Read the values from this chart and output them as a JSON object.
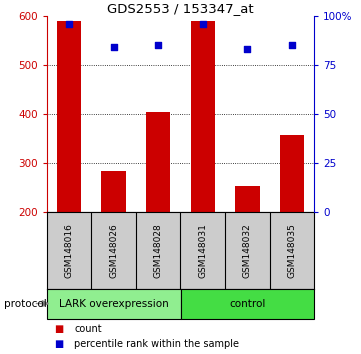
{
  "title": "GDS2553 / 153347_at",
  "samples": [
    "GSM148016",
    "GSM148026",
    "GSM148028",
    "GSM148031",
    "GSM148032",
    "GSM148035"
  ],
  "counts": [
    590,
    285,
    405,
    590,
    253,
    358
  ],
  "percentile_ranks": [
    96,
    84,
    85,
    96,
    83,
    85
  ],
  "ylim_left": [
    200,
    600
  ],
  "ylim_right": [
    0,
    100
  ],
  "yticks_left": [
    200,
    300,
    400,
    500,
    600
  ],
  "yticks_right": [
    0,
    25,
    50,
    75,
    100
  ],
  "ytick_labels_right": [
    "0",
    "25",
    "50",
    "75",
    "100%"
  ],
  "bar_color": "#cc0000",
  "dot_color": "#0000cc",
  "group1_label": "LARK overexpression",
  "group2_label": "control",
  "group1_color": "#90ee90",
  "group2_color": "#44dd44",
  "protocol_label": "protocol",
  "legend_count_label": "count",
  "legend_percentile_label": "percentile rank within the sample",
  "bar_color_legend": "#cc0000",
  "dot_color_legend": "#0000cc",
  "right_axis_color": "#0000cc",
  "background_color": "#ffffff",
  "label_bg_color": "#cccccc",
  "bar_bottom": 200,
  "bar_width": 0.55,
  "grid_yticks": [
    300,
    400,
    500
  ],
  "n_samples": 6,
  "group1_count": 3,
  "group2_count": 3
}
